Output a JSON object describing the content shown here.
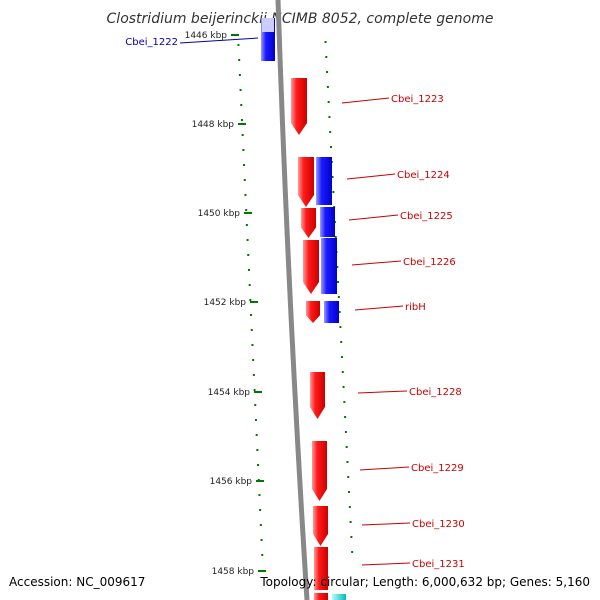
{
  "title": "Clostridium beijerinckii NCIMB 8052, complete genome",
  "footer": {
    "accession": "Accession: NC_009617",
    "topology": "Topology: circular; Length: 6,000,632 bp; Genes: 5,160"
  },
  "colors": {
    "forward": "#ff0000",
    "reverse": "#0000ff",
    "label_forward": "#cc0000",
    "label_reverse": "#0000aa",
    "tick": "#007700",
    "backbone": "#888888",
    "extra": "#00cccc"
  },
  "ticks": [
    {
      "label": "1446 kbp"
    },
    {
      "label": "1448 kbp"
    },
    {
      "label": "1450 kbp"
    },
    {
      "label": "1452 kbp"
    },
    {
      "label": "1454 kbp"
    },
    {
      "label": "1456 kbp"
    },
    {
      "label": "1458 kbp"
    }
  ],
  "genes": [
    {
      "name": "Cbei_1222",
      "strand": "reverse"
    },
    {
      "name": "Cbei_1223",
      "strand": "forward"
    },
    {
      "name": "Cbei_1224",
      "strand": "forward"
    },
    {
      "name": "Cbei_1225",
      "strand": "forward"
    },
    {
      "name": "Cbei_1226",
      "strand": "forward"
    },
    {
      "name": "ribH",
      "strand": "forward"
    },
    {
      "name": "Cbei_1228",
      "strand": "forward"
    },
    {
      "name": "Cbei_1229",
      "strand": "forward"
    },
    {
      "name": "Cbei_1230",
      "strand": "forward"
    },
    {
      "name": "Cbei_1231",
      "strand": "forward"
    }
  ]
}
